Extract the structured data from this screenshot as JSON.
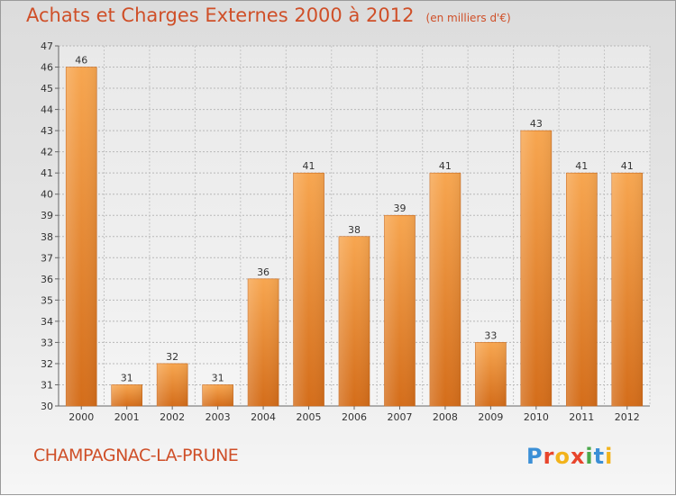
{
  "chart_data": {
    "type": "bar",
    "title": "Achats et Charges Externes 2000 à 2012",
    "unit": "(en milliers d'€)",
    "categories": [
      "2000",
      "2001",
      "2002",
      "2003",
      "2004",
      "2005",
      "2006",
      "2007",
      "2008",
      "2009",
      "2010",
      "2011",
      "2012"
    ],
    "values": [
      46,
      31,
      32,
      31,
      36,
      41,
      38,
      39,
      41,
      33,
      43,
      41,
      41
    ],
    "ylim": [
      30,
      47
    ],
    "yticks": [
      30,
      31,
      32,
      33,
      34,
      35,
      36,
      37,
      38,
      39,
      40,
      41,
      42,
      43,
      44,
      45,
      46,
      47
    ],
    "grid": true,
    "bar_color": "#f29a3a",
    "bar_color_dark": "#d46d1a"
  },
  "footer": {
    "commune": "CHAMPAGNAC-LA-PRUNE",
    "logo_letters": [
      "P",
      "r",
      "o",
      "x",
      "i",
      "t",
      "i"
    ],
    "logo_colors": [
      "#3b8fd6",
      "#e8452c",
      "#f2b31b",
      "#e8452c",
      "#4aa84a",
      "#3b8fd6",
      "#f2b31b"
    ]
  }
}
